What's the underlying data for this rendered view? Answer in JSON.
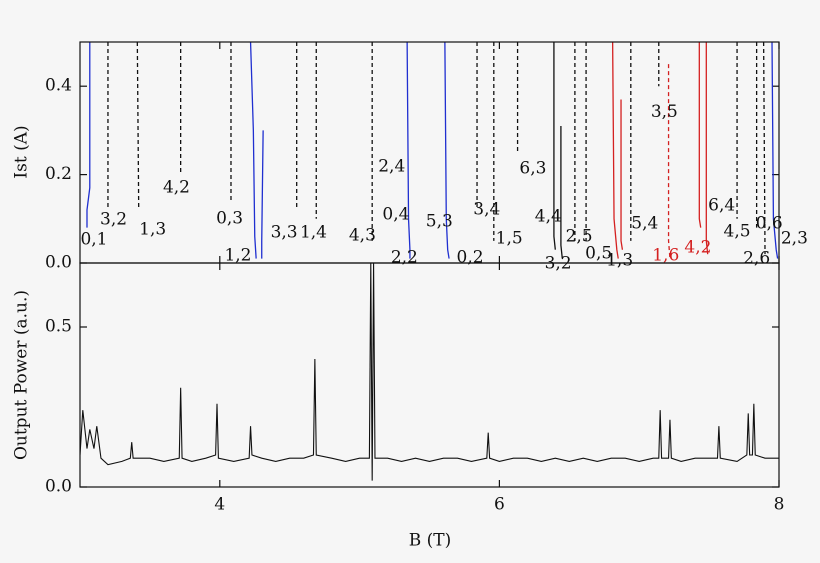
{
  "chart_data": [
    {
      "type": "curves",
      "ylabel": "Ist (A)",
      "xlim": [
        3,
        8
      ],
      "xticks": [
        4,
        6,
        8
      ],
      "ylim": [
        0,
        0.5
      ],
      "yticks": [
        {
          "value": 0,
          "label": "0.0"
        },
        0.2,
        0.4
      ],
      "curves": [
        {
          "color": "#1f2fd0",
          "dash": false,
          "x": [
            3.07,
            3.07,
            3.05,
            3.05
          ],
          "y": [
            0.5,
            0.17,
            0.12,
            0.08
          ]
        },
        {
          "color": "#111111",
          "dash": true,
          "x": [
            3.2,
            3.2
          ],
          "y": [
            0.5,
            0.12
          ]
        },
        {
          "color": "#111111",
          "dash": true,
          "x": [
            3.41,
            3.42
          ],
          "y": [
            0.5,
            0.12
          ]
        },
        {
          "color": "#111111",
          "dash": true,
          "x": [
            3.72,
            3.72
          ],
          "y": [
            0.5,
            0.2
          ]
        },
        {
          "color": "#111111",
          "dash": true,
          "x": [
            4.08,
            4.08
          ],
          "y": [
            0.5,
            0.14
          ]
        },
        {
          "color": "#1f2fd0",
          "dash": false,
          "x": [
            4.22,
            4.24,
            4.25,
            4.26
          ],
          "y": [
            0.5,
            0.3,
            0.06,
            0.01
          ]
        },
        {
          "color": "#1f2fd0",
          "dash": false,
          "x": [
            4.31,
            4.3,
            4.3
          ],
          "y": [
            0.3,
            0.05,
            0.01
          ]
        },
        {
          "color": "#111111",
          "dash": true,
          "x": [
            4.55,
            4.55
          ],
          "y": [
            0.5,
            0.12
          ]
        },
        {
          "color": "#111111",
          "dash": true,
          "x": [
            4.69,
            4.69
          ],
          "y": [
            0.5,
            0.1
          ]
        },
        {
          "color": "#111111",
          "dash": true,
          "x": [
            5.09,
            5.09
          ],
          "y": [
            0.5,
            0.05
          ]
        },
        {
          "color": "#1f2fd0",
          "dash": false,
          "x": [
            5.34,
            5.35,
            5.36,
            5.36
          ],
          "y": [
            0.5,
            0.1,
            0.03,
            0.01
          ]
        },
        {
          "color": "#1f2fd0",
          "dash": false,
          "x": [
            5.61,
            5.62,
            5.63,
            5.64
          ],
          "y": [
            0.5,
            0.1,
            0.03,
            0.01
          ]
        },
        {
          "color": "#111111",
          "dash": true,
          "x": [
            5.84,
            5.84
          ],
          "y": [
            0.5,
            0.12
          ]
        },
        {
          "color": "#111111",
          "dash": true,
          "x": [
            5.96,
            5.96
          ],
          "y": [
            0.5,
            0.05
          ]
        },
        {
          "color": "#111111",
          "dash": true,
          "x": [
            6.13,
            6.13
          ],
          "y": [
            0.5,
            0.25
          ]
        },
        {
          "color": "#111111",
          "dash": false,
          "x": [
            6.39,
            6.39,
            6.4
          ],
          "y": [
            0.5,
            0.06,
            0.03
          ]
        },
        {
          "color": "#111111",
          "dash": false,
          "x": [
            6.44,
            6.44,
            6.45
          ],
          "y": [
            0.31,
            0.04,
            0.01
          ]
        },
        {
          "color": "#111111",
          "dash": true,
          "x": [
            6.54,
            6.54
          ],
          "y": [
            0.5,
            0.05
          ]
        },
        {
          "color": "#111111",
          "dash": true,
          "x": [
            6.62,
            6.62
          ],
          "y": [
            0.5,
            0.05
          ]
        },
        {
          "color": "#d42020",
          "dash": false,
          "x": [
            6.81,
            6.82,
            6.84,
            6.85
          ],
          "y": [
            0.5,
            0.1,
            0.03,
            0.01
          ]
        },
        {
          "color": "#d42020",
          "dash": false,
          "x": [
            6.87,
            6.87,
            6.88
          ],
          "y": [
            0.37,
            0.05,
            0.03
          ]
        },
        {
          "color": "#111111",
          "dash": true,
          "x": [
            6.94,
            6.94
          ],
          "y": [
            0.5,
            0.05
          ]
        },
        {
          "color": "#111111",
          "dash": true,
          "x": [
            7.14,
            7.14
          ],
          "y": [
            0.5,
            0.4
          ]
        },
        {
          "color": "#d42020",
          "dash": true,
          "x": [
            7.21,
            7.21,
            7.22
          ],
          "y": [
            0.45,
            0.05,
            0.01
          ]
        },
        {
          "color": "#d42020",
          "dash": false,
          "x": [
            7.43,
            7.43,
            7.44
          ],
          "y": [
            0.5,
            0.1,
            0.08
          ]
        },
        {
          "color": "#d42020",
          "dash": false,
          "x": [
            7.48,
            7.48,
            7.49
          ],
          "y": [
            0.5,
            0.05,
            0.02
          ]
        },
        {
          "color": "#111111",
          "dash": true,
          "x": [
            7.7,
            7.7
          ],
          "y": [
            0.5,
            0.1
          ]
        },
        {
          "color": "#111111",
          "dash": true,
          "x": [
            7.84,
            7.84
          ],
          "y": [
            0.5,
            0.08
          ]
        },
        {
          "color": "#111111",
          "dash": true,
          "x": [
            7.89,
            7.9
          ],
          "y": [
            0.5,
            0.02
          ]
        },
        {
          "color": "#1f2fd0",
          "dash": false,
          "x": [
            7.95,
            7.96,
            7.98,
            7.99
          ],
          "y": [
            0.5,
            0.1,
            0.03,
            0.01
          ]
        }
      ],
      "annotations": [
        {
          "text": "0,1",
          "x": 3.1,
          "y": 0.052,
          "color": "#111111"
        },
        {
          "text": "3,2",
          "x": 3.24,
          "y": 0.097,
          "color": "#111111"
        },
        {
          "text": "1,3",
          "x": 3.52,
          "y": 0.075,
          "color": "#111111"
        },
        {
          "text": "4,2",
          "x": 3.69,
          "y": 0.17,
          "color": "#111111"
        },
        {
          "text": "0,3",
          "x": 4.07,
          "y": 0.1,
          "color": "#111111"
        },
        {
          "text": "1,2",
          "x": 4.13,
          "y": 0.016,
          "color": "#111111"
        },
        {
          "text": "3,3",
          "x": 4.46,
          "y": 0.068,
          "color": "#111111"
        },
        {
          "text": "1,4",
          "x": 4.67,
          "y": 0.068,
          "color": "#111111"
        },
        {
          "text": "4,3",
          "x": 5.02,
          "y": 0.061,
          "color": "#111111"
        },
        {
          "text": "2,4",
          "x": 5.23,
          "y": 0.217,
          "color": "#111111"
        },
        {
          "text": "0,4",
          "x": 5.26,
          "y": 0.109,
          "color": "#111111"
        },
        {
          "text": "2,2",
          "x": 5.32,
          "y": 0.011,
          "color": "#111111"
        },
        {
          "text": "5,3",
          "x": 5.57,
          "y": 0.093,
          "color": "#111111"
        },
        {
          "text": "0,2",
          "x": 5.79,
          "y": 0.011,
          "color": "#111111"
        },
        {
          "text": "3,4",
          "x": 5.91,
          "y": 0.12,
          "color": "#111111"
        },
        {
          "text": "1,5",
          "x": 6.07,
          "y": 0.054,
          "color": "#111111"
        },
        {
          "text": "6,3",
          "x": 6.24,
          "y": 0.213,
          "color": "#111111"
        },
        {
          "text": "4,4",
          "x": 6.35,
          "y": 0.104,
          "color": "#111111"
        },
        {
          "text": "2,5",
          "x": 6.57,
          "y": 0.059,
          "color": "#111111"
        },
        {
          "text": "3,2",
          "x": 6.42,
          "y": -0.002,
          "color": "#111111"
        },
        {
          "text": "0,5",
          "x": 6.71,
          "y": 0.02,
          "color": "#111111"
        },
        {
          "text": "1,3",
          "x": 6.86,
          "y": 0.005,
          "color": "#111111"
        },
        {
          "text": "5,4",
          "x": 7.04,
          "y": 0.088,
          "color": "#111111"
        },
        {
          "text": "3,5",
          "x": 7.18,
          "y": 0.34,
          "color": "#111111"
        },
        {
          "text": "1,6",
          "x": 7.19,
          "y": 0.016,
          "color": "#d42020"
        },
        {
          "text": "4,2",
          "x": 7.42,
          "y": 0.034,
          "color": "#d42020"
        },
        {
          "text": "6,4",
          "x": 7.59,
          "y": 0.129,
          "color": "#111111"
        },
        {
          "text": "4,5",
          "x": 7.7,
          "y": 0.07,
          "color": "#111111"
        },
        {
          "text": "0,6",
          "x": 7.93,
          "y": 0.088,
          "color": "#111111"
        },
        {
          "text": "2,6",
          "x": 7.84,
          "y": 0.009,
          "color": "#111111"
        },
        {
          "text": "2,3",
          "x": 8.11,
          "y": 0.054,
          "color": "#111111"
        }
      ]
    },
    {
      "type": "line",
      "ylabel": "Output Power (a.u.)",
      "xlabel": "B (T)",
      "xlim": [
        3,
        8
      ],
      "xticks": [
        4,
        6,
        8
      ],
      "ylim": [
        0,
        0.7
      ],
      "yticks": [
        {
          "value": 0,
          "label": "0.0"
        },
        0.5
      ],
      "color": "#111111",
      "x": [
        3.0,
        3.02,
        3.05,
        3.07,
        3.1,
        3.12,
        3.15,
        3.2,
        3.3,
        3.36,
        3.37,
        3.38,
        3.5,
        3.6,
        3.71,
        3.72,
        3.73,
        3.8,
        3.9,
        3.97,
        3.98,
        3.99,
        4.1,
        4.21,
        4.22,
        4.23,
        4.3,
        4.4,
        4.5,
        4.6,
        4.67,
        4.68,
        4.69,
        4.8,
        4.9,
        5.0,
        5.07,
        5.08,
        5.09,
        5.1,
        5.11,
        5.2,
        5.3,
        5.4,
        5.5,
        5.6,
        5.7,
        5.8,
        5.91,
        5.92,
        5.93,
        6.0,
        6.1,
        6.2,
        6.3,
        6.4,
        6.5,
        6.6,
        6.7,
        6.8,
        6.9,
        7.0,
        7.1,
        7.14,
        7.15,
        7.16,
        7.21,
        7.22,
        7.23,
        7.3,
        7.4,
        7.5,
        7.56,
        7.57,
        7.58,
        7.7,
        7.77,
        7.78,
        7.79,
        7.81,
        7.82,
        7.83,
        7.9,
        8.0
      ],
      "values": [
        0.1,
        0.24,
        0.12,
        0.18,
        0.12,
        0.19,
        0.09,
        0.07,
        0.08,
        0.09,
        0.14,
        0.09,
        0.09,
        0.08,
        0.09,
        0.31,
        0.09,
        0.08,
        0.09,
        0.1,
        0.26,
        0.09,
        0.08,
        0.09,
        0.19,
        0.1,
        0.09,
        0.08,
        0.09,
        0.09,
        0.1,
        0.4,
        0.1,
        0.09,
        0.08,
        0.09,
        0.09,
        0.7,
        0.02,
        0.7,
        0.09,
        0.09,
        0.08,
        0.09,
        0.08,
        0.09,
        0.09,
        0.08,
        0.09,
        0.17,
        0.09,
        0.08,
        0.09,
        0.09,
        0.08,
        0.09,
        0.08,
        0.09,
        0.08,
        0.09,
        0.09,
        0.08,
        0.09,
        0.09,
        0.24,
        0.09,
        0.09,
        0.21,
        0.09,
        0.08,
        0.09,
        0.09,
        0.09,
        0.19,
        0.09,
        0.08,
        0.1,
        0.23,
        0.1,
        0.1,
        0.26,
        0.1,
        0.09,
        0.09
      ]
    }
  ]
}
